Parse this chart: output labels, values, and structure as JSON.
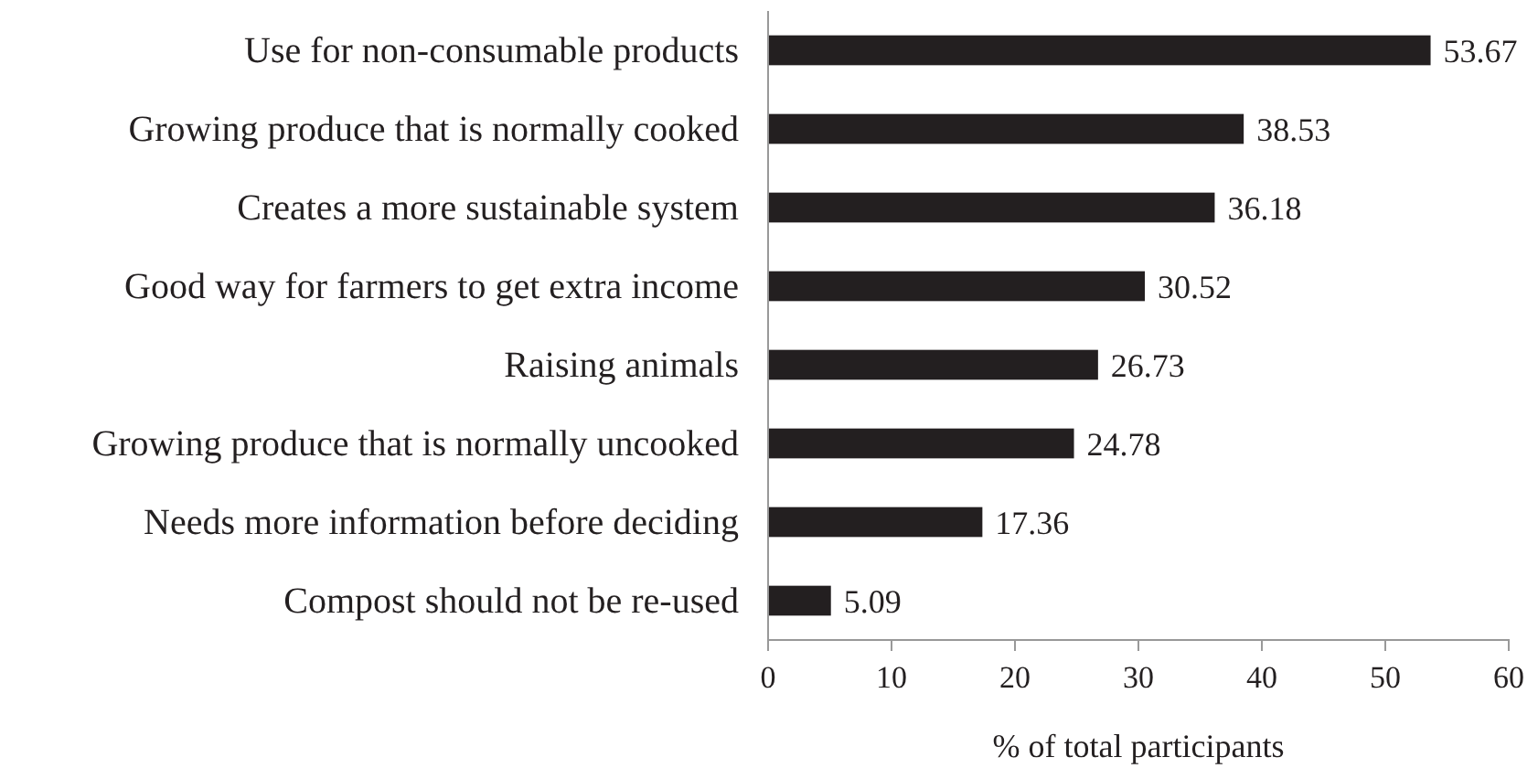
{
  "chart_data": {
    "type": "bar",
    "orientation": "horizontal",
    "xlabel": "% of total participants",
    "categories": [
      "Use for non-consumable products",
      "Growing produce that is normally cooked",
      "Creates a more sustainable system",
      "Good way for farmers to get extra income",
      "Raising animals",
      "Growing produce that is normally uncooked",
      "Needs more information before deciding",
      "Compost should not be re-used"
    ],
    "values": [
      53.67,
      38.53,
      36.18,
      30.52,
      26.73,
      24.78,
      17.36,
      5.09
    ],
    "color": "#231f20",
    "data_labels": true,
    "xlim": [
      0,
      60
    ],
    "xticks": [
      0,
      10,
      20,
      30,
      40,
      50,
      60
    ],
    "grid": false
  }
}
